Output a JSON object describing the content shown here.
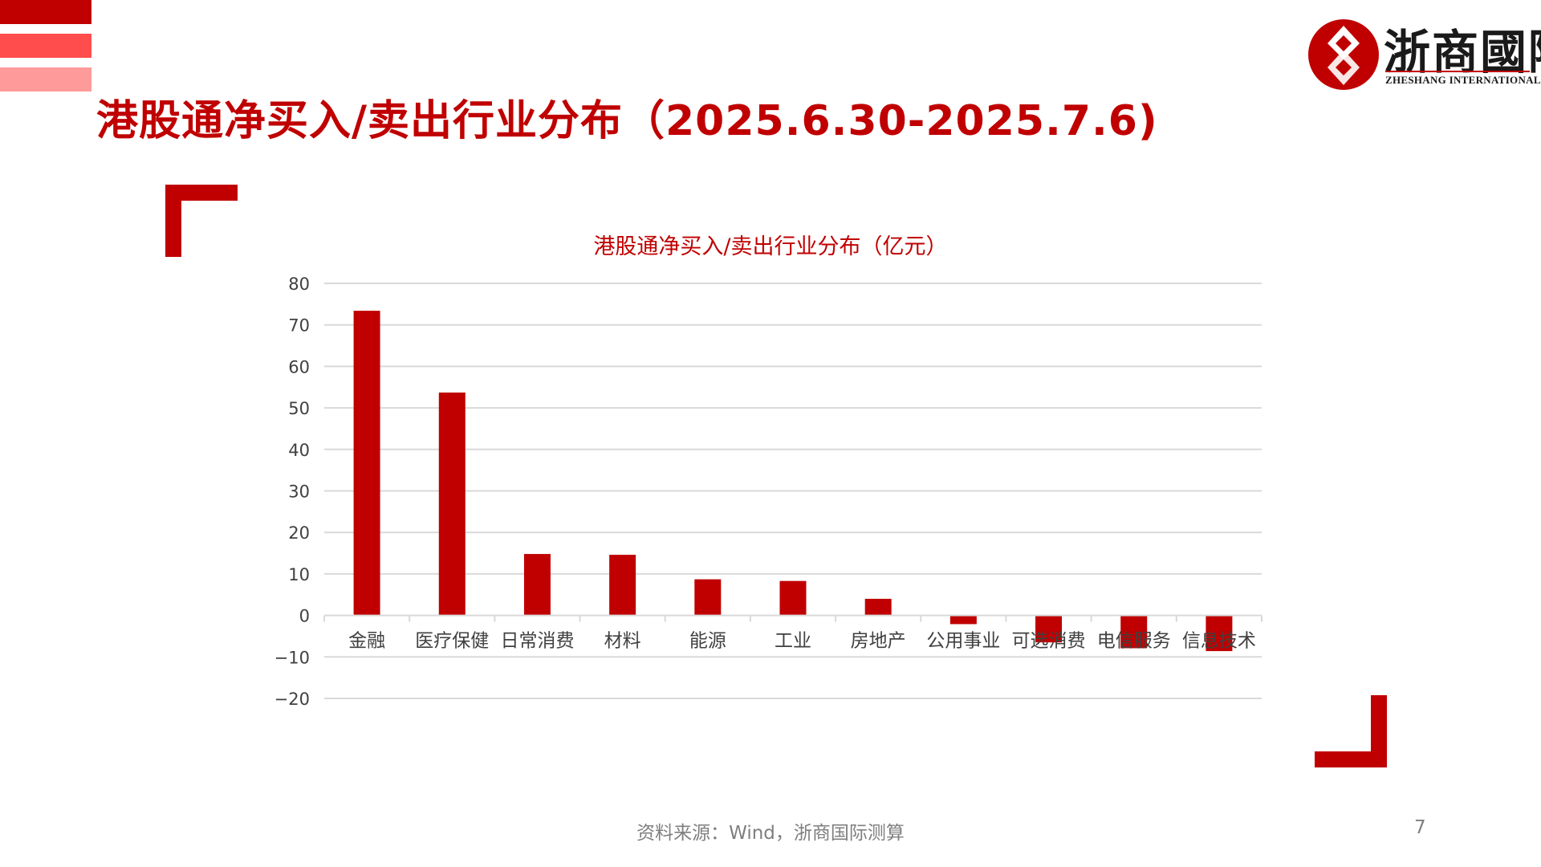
{
  "header": {
    "title": "港股通净买入/卖出行业分布（2025.6.30-2025.7.6)",
    "logo_cn": "浙商國際",
    "logo_en": "ZHESHANG INTERNATIONAL"
  },
  "colors": {
    "accent": "#c00000",
    "stripe_mid": "#ff4d4d",
    "stripe_light": "#ff9a9a",
    "grid": "#d9d9d9",
    "text_muted": "#7f7f7f"
  },
  "chart_data": {
    "type": "bar",
    "title": "港股通净买入/卖出行业分布（亿元）",
    "categories": [
      "金融",
      "医疗保健",
      "日常消费",
      "材料",
      "能源",
      "工业",
      "房地产",
      "公用事业",
      "可选消费",
      "电信服务",
      "信息技术"
    ],
    "values": [
      73.4,
      53.7,
      14.8,
      14.6,
      8.7,
      8.3,
      4.0,
      -2.1,
      -6.5,
      -7.9,
      -8.6
    ],
    "ylim": [
      -20,
      80
    ],
    "yticks": [
      80,
      70,
      60,
      50,
      40,
      30,
      20,
      10,
      0,
      -10,
      -20
    ],
    "ytick_labels": [
      "80",
      "70",
      "60",
      "50",
      "40",
      "30",
      "20",
      "10",
      "0",
      "−10",
      "−20"
    ],
    "xlabel": "",
    "ylabel": "",
    "grid": true,
    "legend": "none",
    "bar_color": "#c00000"
  },
  "footer": {
    "source": "资料来源：Wind，浙商国际测算",
    "page_number": "7"
  }
}
